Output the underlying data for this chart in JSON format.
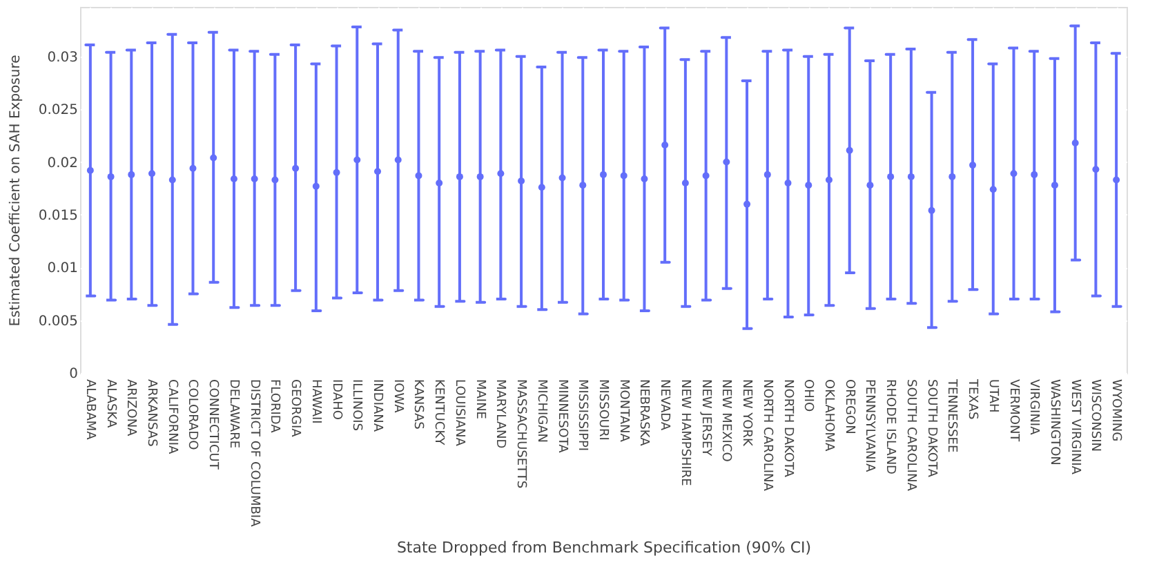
{
  "chart_data": {
    "type": "scatter",
    "xlabel": "State Dropped from Benchmark Specification (90% CI)",
    "ylabel": "Estimated Coefficient on SAH Exposure",
    "categories": [
      "ALABAMA",
      "ALASKA",
      "ARIZONA",
      "ARKANSAS",
      "CALIFORNIA",
      "COLORADO",
      "CONNECTICUT",
      "DELAWARE",
      "DISTRICT OF COLUMBIA",
      "FLORIDA",
      "GEORGIA",
      "HAWAII",
      "IDAHO",
      "ILLINOIS",
      "INDIANA",
      "IOWA",
      "KANSAS",
      "KENTUCKY",
      "LOUISIANA",
      "MAINE",
      "MARYLAND",
      "MASSACHUSETTS",
      "MICHIGAN",
      "MINNESOTA",
      "MISSISSIPPI",
      "MISSOURI",
      "MONTANA",
      "NEBRASKA",
      "NEVADA",
      "NEW HAMPSHIRE",
      "NEW JERSEY",
      "NEW MEXICO",
      "NEW YORK",
      "NORTH CAROLINA",
      "NORTH DAKOTA",
      "OHIO",
      "OKLAHOMA",
      "OREGON",
      "PENNSYLVANIA",
      "RHODE ISLAND",
      "SOUTH CAROLINA",
      "SOUTH DAKOTA",
      "TENNESSEE",
      "TEXAS",
      "UTAH",
      "VERMONT",
      "VIRGINIA",
      "WASHINGTON",
      "WEST VIRGINIA",
      "WISCONSIN",
      "WYOMING"
    ],
    "series": [
      {
        "color": "#636efa",
        "values": [
          0.0192,
          0.0186,
          0.0188,
          0.0189,
          0.0183,
          0.0194,
          0.0204,
          0.0184,
          0.0184,
          0.0183,
          0.0194,
          0.0177,
          0.019,
          0.0202,
          0.0191,
          0.0202,
          0.0187,
          0.018,
          0.0186,
          0.0186,
          0.0189,
          0.0182,
          0.0176,
          0.0185,
          0.0178,
          0.0188,
          0.0187,
          0.0184,
          0.0216,
          0.018,
          0.0187,
          0.02,
          0.016,
          0.0188,
          0.018,
          0.0178,
          0.0183,
          0.0211,
          0.0178,
          0.0186,
          0.0186,
          0.0154,
          0.0186,
          0.0197,
          0.0174,
          0.0189,
          0.0188,
          0.0178,
          0.0218,
          0.0193,
          0.0183
        ],
        "errors": [
          [
            0.0073,
            0.0311
          ],
          [
            0.0069,
            0.0304
          ],
          [
            0.007,
            0.0306
          ],
          [
            0.0064,
            0.0313
          ],
          [
            0.0046,
            0.0321
          ],
          [
            0.0075,
            0.0313
          ],
          [
            0.0086,
            0.0323
          ],
          [
            0.0062,
            0.0306
          ],
          [
            0.0064,
            0.0305
          ],
          [
            0.0064,
            0.0302
          ],
          [
            0.0078,
            0.0311
          ],
          [
            0.0059,
            0.0293
          ],
          [
            0.0071,
            0.031
          ],
          [
            0.0076,
            0.0328
          ],
          [
            0.0069,
            0.0312
          ],
          [
            0.0078,
            0.0325
          ],
          [
            0.0069,
            0.0305
          ],
          [
            0.0063,
            0.0299
          ],
          [
            0.0068,
            0.0304
          ],
          [
            0.0067,
            0.0305
          ],
          [
            0.007,
            0.0306
          ],
          [
            0.0063,
            0.03
          ],
          [
            0.006,
            0.029
          ],
          [
            0.0067,
            0.0304
          ],
          [
            0.0056,
            0.0299
          ],
          [
            0.007,
            0.0306
          ],
          [
            0.0069,
            0.0305
          ],
          [
            0.0059,
            0.0309
          ],
          [
            0.0105,
            0.0327
          ],
          [
            0.0063,
            0.0297
          ],
          [
            0.0069,
            0.0305
          ],
          [
            0.008,
            0.0318
          ],
          [
            0.0042,
            0.0277
          ],
          [
            0.007,
            0.0305
          ],
          [
            0.0053,
            0.0306
          ],
          [
            0.0055,
            0.03
          ],
          [
            0.0064,
            0.0302
          ],
          [
            0.0095,
            0.0327
          ],
          [
            0.0061,
            0.0296
          ],
          [
            0.007,
            0.0302
          ],
          [
            0.0066,
            0.0307
          ],
          [
            0.0043,
            0.0266
          ],
          [
            0.0068,
            0.0304
          ],
          [
            0.0079,
            0.0316
          ],
          [
            0.0056,
            0.0293
          ],
          [
            0.007,
            0.0308
          ],
          [
            0.007,
            0.0305
          ],
          [
            0.0058,
            0.0298
          ],
          [
            0.0107,
            0.0329
          ],
          [
            0.0073,
            0.0313
          ],
          [
            0.0063,
            0.0303
          ]
        ]
      }
    ],
    "ylim": [
      0,
      0.0347
    ],
    "yticks": [
      0,
      0.005,
      0.01,
      0.015,
      0.02,
      0.025,
      0.03
    ],
    "grid": true,
    "marker": "circle"
  }
}
